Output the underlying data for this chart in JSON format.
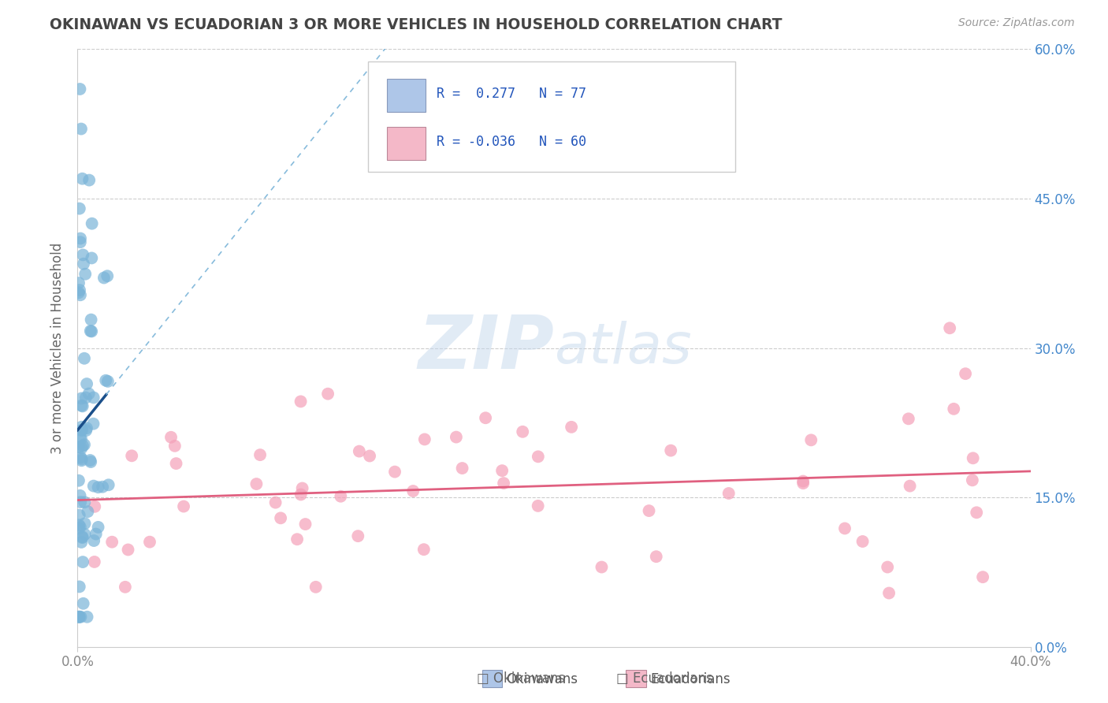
{
  "title": "OKINAWAN VS ECUADORIAN 3 OR MORE VEHICLES IN HOUSEHOLD CORRELATION CHART",
  "source": "Source: ZipAtlas.com",
  "ylabel": "3 or more Vehicles in Household",
  "watermark": "ZIPAtlas",
  "xlim": [
    0.0,
    0.4
  ],
  "ylim": [
    0.0,
    0.6
  ],
  "xticks": [
    0.0,
    0.4
  ],
  "yticks": [
    0.0,
    0.15,
    0.3,
    0.45,
    0.6
  ],
  "xtick_labels": [
    "0.0%",
    "40.0%"
  ],
  "ytick_labels": [
    "0.0%",
    "15.0%",
    "30.0%",
    "45.0%",
    "60.0%"
  ],
  "grid_yticks": [
    0.15,
    0.3,
    0.45,
    0.6
  ],
  "legend_label1": "R =  0.277   N = 77",
  "legend_label2": "R = -0.036   N = 60",
  "legend1_color": "#aec6e8",
  "legend2_color": "#f4b8c8",
  "okinawan_R": 0.277,
  "okinawan_N": 77,
  "ecuadorian_R": -0.036,
  "ecuadorian_N": 60,
  "blue_color": "#7ab4d8",
  "pink_color": "#f4a0b8",
  "blue_line_color": "#1a4f8a",
  "pink_line_color": "#e06080",
  "background_color": "#ffffff",
  "grid_color": "#cccccc",
  "title_color": "#444444",
  "axis_color": "#aaaaaa",
  "right_tick_color": "#4488cc",
  "bottom_tick_color": "#888888"
}
